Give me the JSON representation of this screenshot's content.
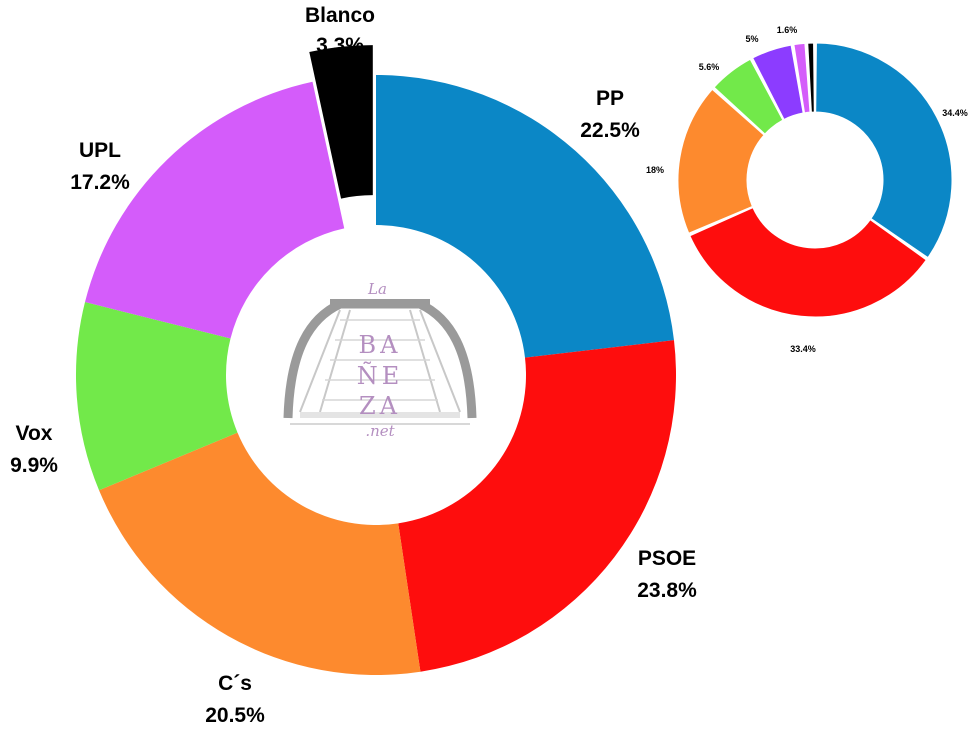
{
  "colors": {
    "PP": "#0b87c6",
    "PSOE": "#fe0d0d",
    "Cs": "#fd8a2e",
    "Vox": "#72e94a",
    "UPL": "#d45cfa",
    "Blanco": "#000000",
    "Otros": "#8c3cff"
  },
  "logo": {
    "line1": "BA",
    "line2": "ÑE",
    "line3": "ZA",
    "prefix": "La",
    "suffix": ".net"
  },
  "chart_data": [
    {
      "type": "pie",
      "variant": "donut",
      "slices": [
        {
          "key": "PP",
          "label": "PP",
          "value": 22.5,
          "value_label": "22.5%"
        },
        {
          "key": "PSOE",
          "label": "PSOE",
          "value": 23.8,
          "value_label": "23.8%"
        },
        {
          "key": "Cs",
          "label": "C´s",
          "value": 20.5,
          "value_label": "20.5%"
        },
        {
          "key": "Vox",
          "label": "Vox",
          "value": 9.9,
          "value_label": "9.9%"
        },
        {
          "key": "UPL",
          "label": "UPL",
          "value": 17.2,
          "value_label": "17.2%"
        },
        {
          "key": "Blanco",
          "label": "Blanco",
          "value": 3.3,
          "value_label": "3.3%"
        }
      ]
    },
    {
      "type": "pie",
      "variant": "donut",
      "slices": [
        {
          "key": "PP",
          "value": 34.4,
          "value_label": "34.4%"
        },
        {
          "key": "PSOE",
          "value": 33.4,
          "value_label": "33.4%"
        },
        {
          "key": "Cs",
          "value": 18,
          "value_label": "18%"
        },
        {
          "key": "Vox",
          "value": 5.6,
          "value_label": "5.6%"
        },
        {
          "key": "Otros",
          "value": 5,
          "value_label": "5%"
        },
        {
          "key": "UPL",
          "value": 1.6,
          "value_label": "1.6%"
        },
        {
          "key": "Blanco",
          "value": 1.0,
          "value_label": ""
        }
      ]
    }
  ]
}
